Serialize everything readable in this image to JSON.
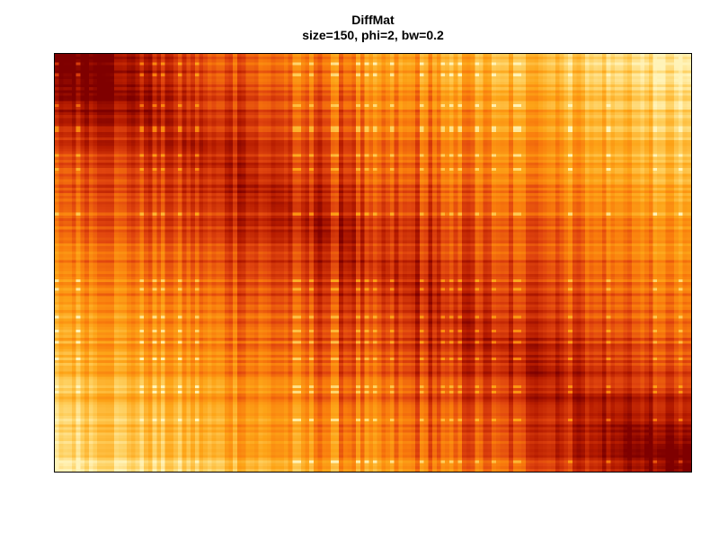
{
  "chart_data": {
    "type": "heatmap",
    "title": "DiffMat",
    "subtitle": "size=150, phi=2, bw=0.2",
    "xlabel": "",
    "ylabel": "",
    "rows": 150,
    "cols": 150,
    "axes_visible": false,
    "legend": "none",
    "colormap": [
      "#7f0000",
      "#b71c00",
      "#e0440e",
      "#f97b0c",
      "#fda417",
      "#fecd59",
      "#fff3b8"
    ],
    "pattern": "cross-hatched distance matrix; low values (dark red) near top-left and bottom-right corners, high values (pale yellow) near top-right and bottom-left corners, with strong row/column stripe texture"
  }
}
